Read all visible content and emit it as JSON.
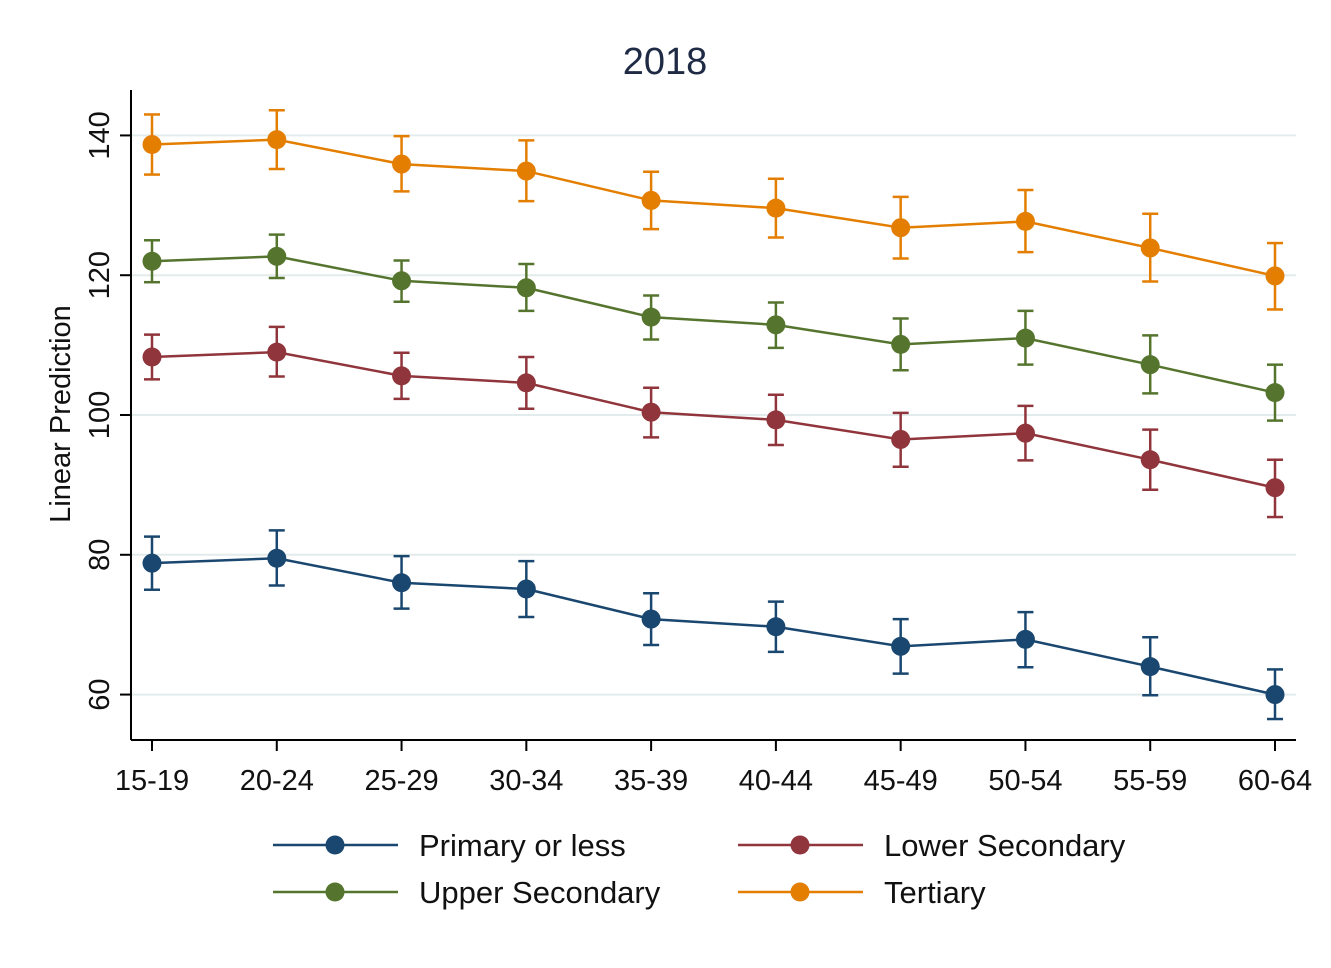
{
  "chart_data": {
    "type": "line",
    "title": "2018",
    "xlabel": "",
    "ylabel": "Linear Prediction",
    "categories": [
      "15-19",
      "20-24",
      "25-29",
      "30-34",
      "35-39",
      "40-44",
      "45-49",
      "50-54",
      "55-59",
      "60-64"
    ],
    "yticks": [
      60,
      80,
      100,
      120,
      140
    ],
    "ytick_labels": [
      "60",
      "80",
      "100",
      "120",
      "140"
    ],
    "ylim": [
      53.5,
      146.5
    ],
    "grid": true,
    "legend_position": "bottom",
    "error_bars": true,
    "series": [
      {
        "name": "Primary or less",
        "color": "#1a476f",
        "values": [
          78.8,
          79.5,
          76.0,
          75.1,
          70.8,
          69.7,
          66.9,
          67.9,
          64.0,
          60.0
        ],
        "lower": [
          75.0,
          75.6,
          72.3,
          71.1,
          67.1,
          66.1,
          63.0,
          63.9,
          59.9,
          56.5
        ],
        "upper": [
          82.6,
          83.5,
          79.8,
          79.1,
          74.5,
          73.3,
          70.8,
          71.8,
          68.2,
          63.6
        ]
      },
      {
        "name": "Lower Secondary",
        "color": "#90353b",
        "values": [
          108.3,
          109.0,
          105.6,
          104.6,
          100.4,
          99.3,
          96.5,
          97.4,
          93.6,
          89.6
        ],
        "lower": [
          105.1,
          105.5,
          102.3,
          100.9,
          96.8,
          95.7,
          92.6,
          93.5,
          89.3,
          85.4
        ],
        "upper": [
          111.5,
          112.6,
          108.9,
          108.3,
          103.9,
          102.9,
          100.3,
          101.3,
          97.9,
          93.6
        ]
      },
      {
        "name": "Upper Secondary",
        "color": "#55752f",
        "values": [
          122.0,
          122.7,
          119.2,
          118.2,
          114.0,
          112.9,
          110.1,
          111.0,
          107.2,
          103.2
        ],
        "lower": [
          119.0,
          119.6,
          116.2,
          114.9,
          110.8,
          109.6,
          106.4,
          107.2,
          103.1,
          99.2
        ],
        "upper": [
          125.0,
          125.8,
          122.1,
          121.6,
          117.1,
          116.1,
          113.8,
          114.9,
          111.4,
          107.2
        ]
      },
      {
        "name": "Tertiary",
        "color": "#e37e00",
        "values": [
          138.7,
          139.4,
          135.9,
          134.9,
          130.7,
          129.6,
          126.8,
          127.7,
          123.9,
          119.9
        ],
        "lower": [
          134.4,
          135.2,
          132.0,
          130.6,
          126.6,
          125.4,
          122.4,
          123.3,
          119.1,
          115.1
        ],
        "upper": [
          143.0,
          143.6,
          139.9,
          139.3,
          134.8,
          133.8,
          131.2,
          132.2,
          128.8,
          124.6
        ]
      }
    ]
  }
}
